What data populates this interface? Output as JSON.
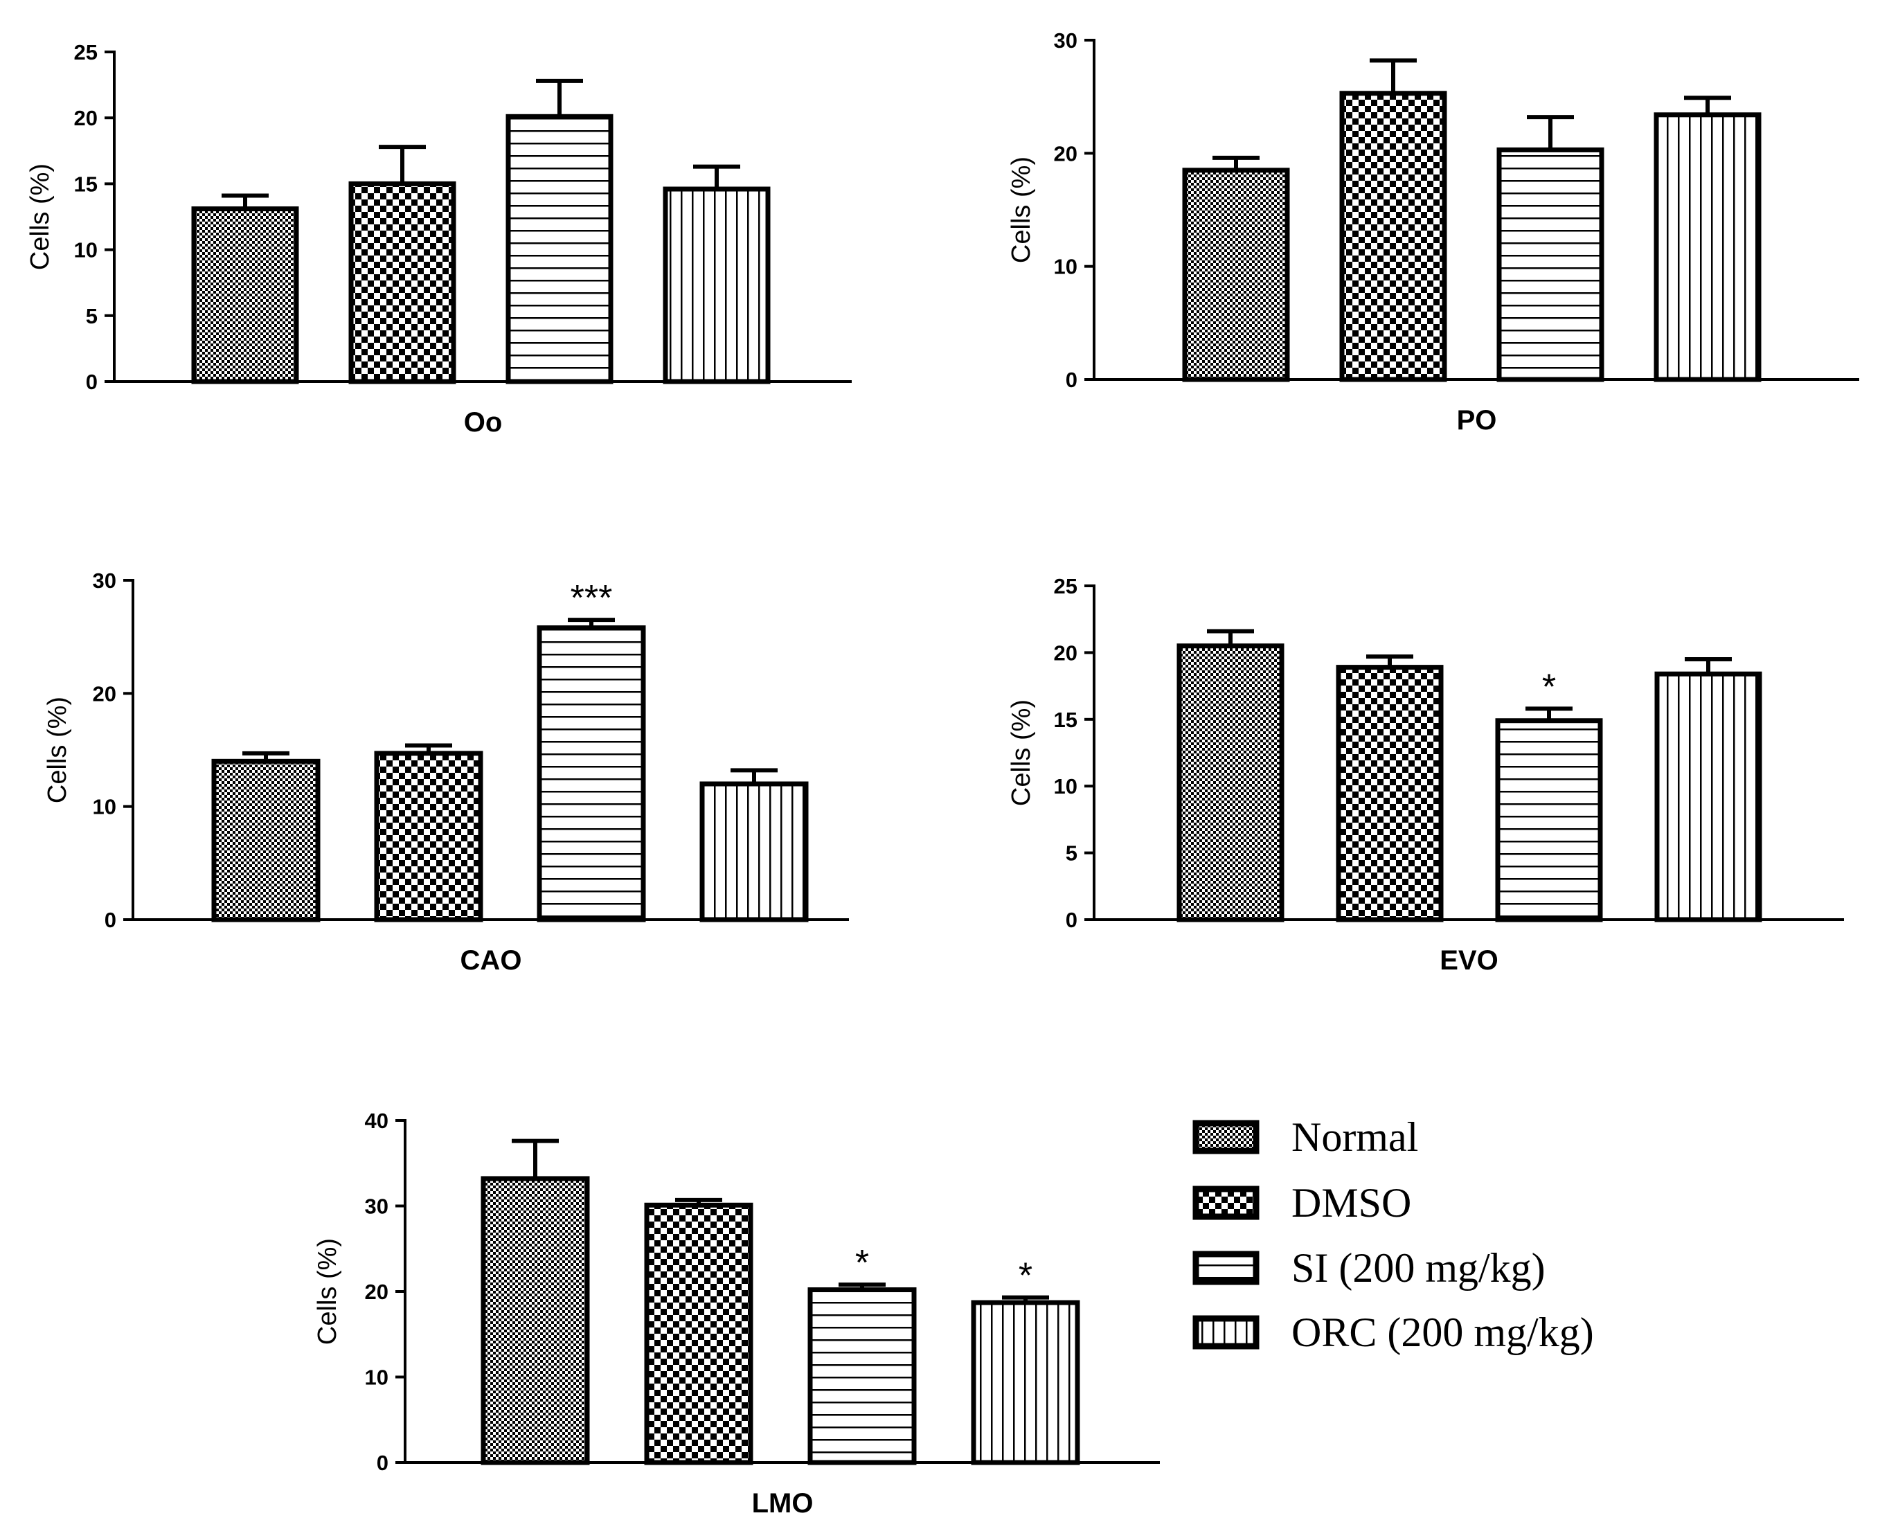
{
  "chart_data": [
    {
      "type": "bar",
      "title": "",
      "xlabel": "Oo",
      "ylabel": "Cells (%)",
      "ylim": [
        0,
        25
      ],
      "yticks": [
        0,
        5,
        10,
        15,
        20,
        25
      ],
      "categories": [
        "Normal",
        "DMSO",
        "SI (200 mg/kg)",
        "ORC (200 mg/kg)"
      ],
      "values": [
        13.1,
        15.0,
        20.1,
        14.6
      ],
      "errors": [
        1.0,
        2.8,
        2.7,
        1.7
      ],
      "significance": [
        "",
        "",
        "",
        ""
      ]
    },
    {
      "type": "bar",
      "title": "",
      "xlabel": "PO",
      "ylabel": "Cells (%)",
      "ylim": [
        0,
        30
      ],
      "yticks": [
        0,
        10,
        20,
        30
      ],
      "categories": [
        "Normal",
        "DMSO",
        "SI (200 mg/kg)",
        "ORC (200 mg/kg)"
      ],
      "values": [
        18.5,
        25.3,
        20.3,
        23.4
      ],
      "errors": [
        1.1,
        2.9,
        2.9,
        1.5
      ],
      "significance": [
        "",
        "",
        "",
        ""
      ]
    },
    {
      "type": "bar",
      "title": "",
      "xlabel": "CAO",
      "ylabel": "Cells (%)",
      "ylim": [
        0,
        30
      ],
      "yticks": [
        0,
        10,
        20,
        30
      ],
      "categories": [
        "Normal",
        "DMSO",
        "SI (200 mg/kg)",
        "ORC (200 mg/kg)"
      ],
      "values": [
        14.0,
        14.7,
        25.8,
        12.0
      ],
      "errors": [
        0.7,
        0.7,
        0.7,
        1.2
      ],
      "significance": [
        "",
        "",
        "***",
        ""
      ]
    },
    {
      "type": "bar",
      "title": "",
      "xlabel": "EVO",
      "ylabel": "Cells (%)",
      "ylim": [
        0,
        25
      ],
      "yticks": [
        0,
        5,
        10,
        15,
        20,
        25
      ],
      "categories": [
        "Normal",
        "DMSO",
        "SI (200 mg/kg)",
        "ORC (200 mg/kg)"
      ],
      "values": [
        20.5,
        18.9,
        14.9,
        18.4
      ],
      "errors": [
        1.1,
        0.8,
        0.9,
        1.1
      ],
      "significance": [
        "",
        "",
        "*",
        ""
      ]
    },
    {
      "type": "bar",
      "title": "",
      "xlabel": "LMO",
      "ylabel": "Cells (%)",
      "ylim": [
        0,
        40
      ],
      "yticks": [
        0,
        10,
        20,
        30,
        40
      ],
      "categories": [
        "Normal",
        "DMSO",
        "SI (200 mg/kg)",
        "ORC (200 mg/kg)"
      ],
      "values": [
        33.2,
        30.1,
        20.2,
        18.7
      ],
      "errors": [
        4.4,
        0.6,
        0.6,
        0.6
      ],
      "significance": [
        "",
        "",
        "*",
        "*"
      ]
    }
  ],
  "legend": {
    "items": [
      {
        "label": "Normal",
        "pattern": "fine-check"
      },
      {
        "label": "DMSO",
        "pattern": "checker"
      },
      {
        "label": "SI (200 mg/kg)",
        "pattern": "horizontal-lines"
      },
      {
        "label": "ORC (200 mg/kg)",
        "pattern": "vertical-lines"
      }
    ]
  },
  "colors": {
    "ink": "#000000",
    "background": "#ffffff"
  }
}
